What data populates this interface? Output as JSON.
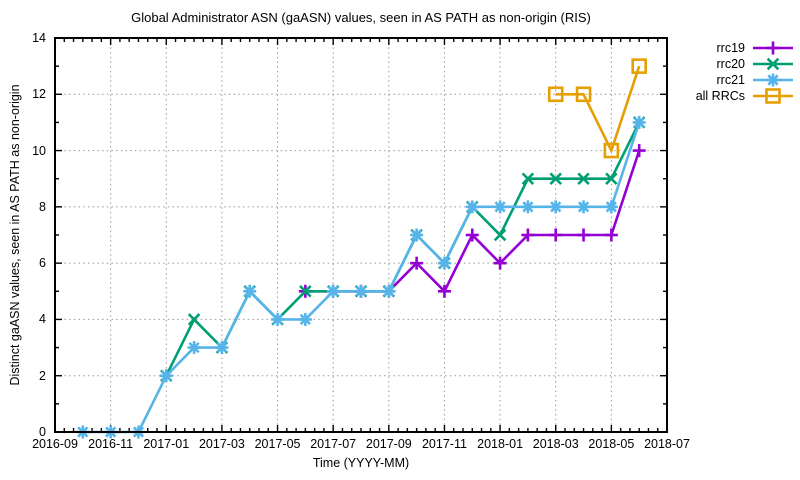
{
  "chart_data": {
    "type": "line",
    "title": "Global Administrator ASN (gaASN) values, seen in AS PATH as non-origin (RIS)",
    "xlabel": "Time (YYYY-MM)",
    "ylabel": "Distinct gaASN values, seen in AS PATH as non-origin",
    "x_range": [
      "2016-09",
      "2018-07"
    ],
    "x_ticks": [
      "2016-09",
      "2016-11",
      "2017-01",
      "2017-03",
      "2017-05",
      "2017-07",
      "2017-09",
      "2017-11",
      "2018-01",
      "2018-03",
      "2018-05",
      "2018-07"
    ],
    "ylim": [
      0,
      14
    ],
    "y_ticks": [
      0,
      2,
      4,
      6,
      8,
      10,
      12,
      14
    ],
    "grid": true,
    "grid_style": "dotted-gray",
    "legend_position": "outside-top-right",
    "colors": {
      "rrc19": "#9400d3",
      "rrc20": "#009e73",
      "rrc21": "#56b4e9",
      "all_rrcs": "#e69f00",
      "axis": "#000000",
      "grid": "#9a9a9a"
    },
    "series": [
      {
        "name": "rrc19",
        "color": "#9400d3",
        "marker": "plus",
        "x": [
          "2017-06",
          "2017-07",
          "2017-08",
          "2017-09",
          "2017-10",
          "2017-11",
          "2017-12",
          "2018-01",
          "2018-02",
          "2018-03",
          "2018-04",
          "2018-05",
          "2018-06"
        ],
        "y": [
          5,
          5,
          5,
          5,
          6,
          5,
          7,
          6,
          7,
          7,
          7,
          7,
          10
        ]
      },
      {
        "name": "rrc20",
        "color": "#009e73",
        "marker": "cross",
        "x": [
          "2017-01",
          "2017-02",
          "2017-03",
          "2017-04",
          "2017-05",
          "2017-06",
          "2017-07",
          "2017-08",
          "2017-09",
          "2017-10",
          "2017-11",
          "2017-12",
          "2018-01",
          "2018-02",
          "2018-03",
          "2018-04",
          "2018-05",
          "2018-06"
        ],
        "y": [
          2,
          4,
          3,
          5,
          4,
          5,
          5,
          5,
          5,
          7,
          6,
          8,
          7,
          9,
          9,
          9,
          9,
          11
        ]
      },
      {
        "name": "rrc21",
        "color": "#56b4e9",
        "marker": "asterisk",
        "x": [
          "2016-10",
          "2016-11",
          "2016-12",
          "2017-01",
          "2017-02",
          "2017-03",
          "2017-04",
          "2017-05",
          "2017-06",
          "2017-07",
          "2017-08",
          "2017-09",
          "2017-10",
          "2017-11",
          "2017-12",
          "2018-01",
          "2018-02",
          "2018-03",
          "2018-04",
          "2018-05",
          "2018-06"
        ],
        "y": [
          0,
          0,
          0,
          2,
          3,
          3,
          5,
          4,
          4,
          5,
          5,
          5,
          7,
          6,
          8,
          8,
          8,
          8,
          8,
          8,
          11
        ]
      },
      {
        "name": "all RRCs",
        "color": "#e69f00",
        "marker": "square",
        "x": [
          "2018-03",
          "2018-04",
          "2018-05",
          "2018-06"
        ],
        "y": [
          12,
          12,
          10,
          13
        ]
      }
    ]
  }
}
